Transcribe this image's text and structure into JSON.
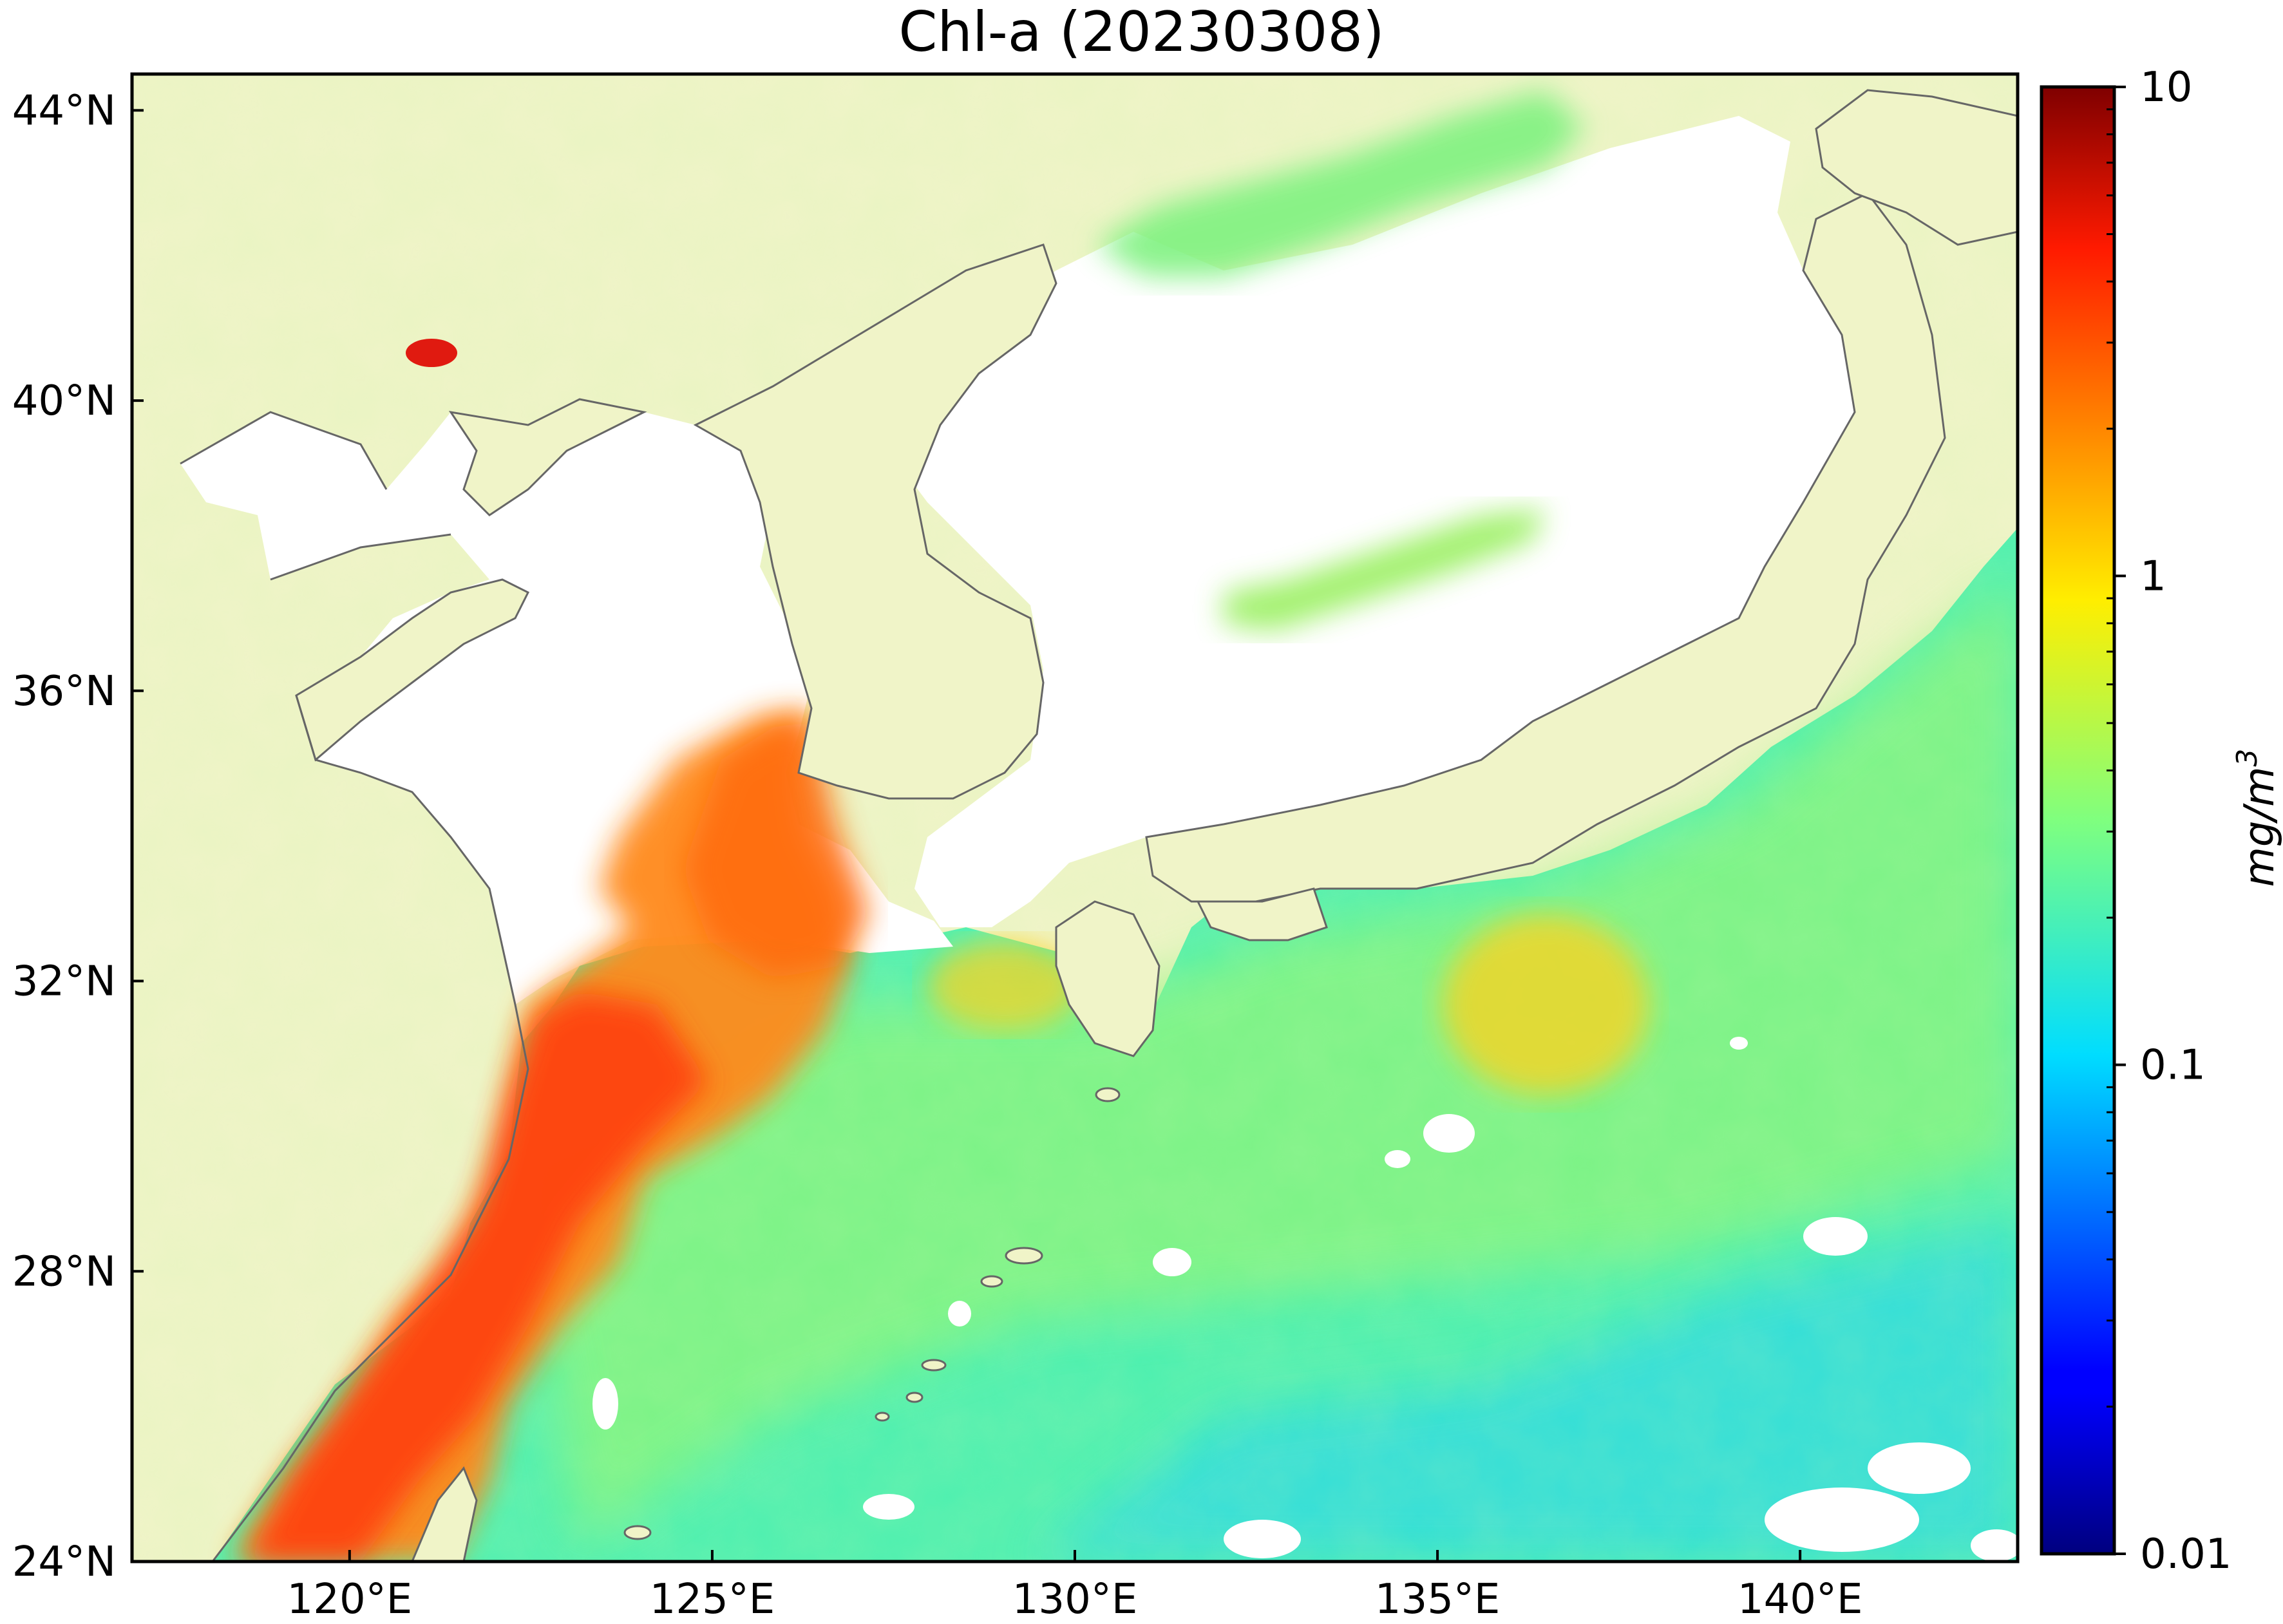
{
  "title": "Chl-a (20230308)",
  "map": {
    "lon_range": [
      117,
      143
    ],
    "lat_range": [
      24,
      44.5
    ],
    "lon_ticks": [
      {
        "value": 120,
        "label": "120°E"
      },
      {
        "value": 125,
        "label": "125°E"
      },
      {
        "value": 130,
        "label": "130°E"
      },
      {
        "value": 135,
        "label": "135°E"
      },
      {
        "value": 140,
        "label": "140°E"
      }
    ],
    "lat_ticks": [
      {
        "value": 24,
        "label": "24°N"
      },
      {
        "value": 28,
        "label": "28°N"
      },
      {
        "value": 32,
        "label": "32°N"
      },
      {
        "value": 36,
        "label": "36°N"
      },
      {
        "value": 40,
        "label": "40°N"
      },
      {
        "value": 44,
        "label": "44°N"
      }
    ],
    "land_color": "#f0f4c8",
    "coast_color": "#666666"
  },
  "colorbar": {
    "scale": "log",
    "range": [
      0.01,
      10
    ],
    "ticks": [
      {
        "value": 10,
        "label": "10"
      },
      {
        "value": 1,
        "label": "1"
      },
      {
        "value": 0.1,
        "label": "0.1"
      },
      {
        "value": 0.01,
        "label": "0.01"
      }
    ],
    "unit_base": "mg/m",
    "unit_exp": "3",
    "colormap": "jet"
  }
}
